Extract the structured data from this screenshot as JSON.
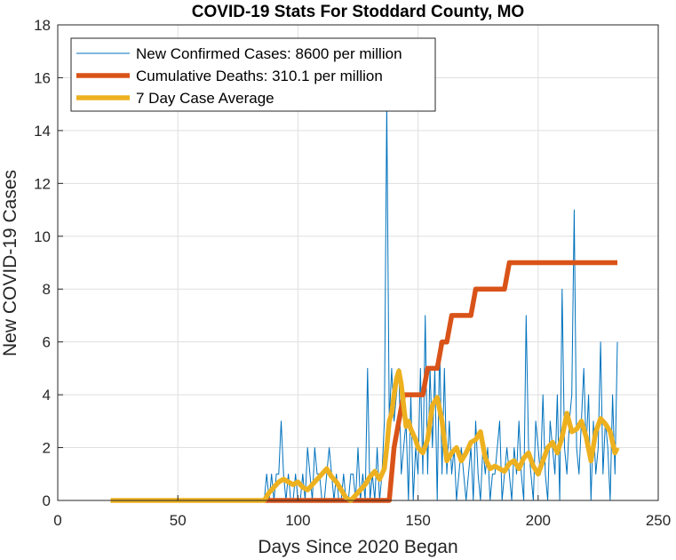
{
  "chart_data": {
    "type": "line",
    "title": "COVID-19 Stats For Stoddard County, MO",
    "xlabel": "Days Since 2020 Began",
    "ylabel": "New COVID-19 Cases",
    "xlim": [
      0,
      250
    ],
    "ylim": [
      0,
      18
    ],
    "xticks": [
      0,
      50,
      100,
      150,
      200,
      250
    ],
    "yticks": [
      0,
      2,
      4,
      6,
      8,
      10,
      12,
      14,
      16,
      18
    ],
    "grid": true,
    "legend_position": "top-left",
    "series": [
      {
        "name": "New Confirmed Cases: 8600 per million",
        "color": "#0072BD",
        "style": "thin",
        "x": [
          22,
          30,
          40,
          50,
          60,
          70,
          80,
          86,
          87,
          88,
          89,
          90,
          91,
          92,
          93,
          94,
          95,
          96,
          97,
          98,
          99,
          100,
          101,
          102,
          103,
          104,
          105,
          106,
          107,
          108,
          109,
          110,
          111,
          112,
          113,
          114,
          115,
          116,
          117,
          118,
          119,
          120,
          121,
          122,
          123,
          124,
          125,
          126,
          127,
          128,
          129,
          130,
          131,
          132,
          133,
          134,
          135,
          136,
          137,
          138,
          139,
          140,
          141,
          142,
          143,
          144,
          145,
          146,
          147,
          148,
          149,
          150,
          151,
          152,
          153,
          154,
          155,
          156,
          157,
          158,
          159,
          160,
          161,
          162,
          163,
          164,
          165,
          166,
          167,
          168,
          169,
          170,
          171,
          172,
          173,
          174,
          175,
          176,
          177,
          178,
          179,
          180,
          181,
          182,
          183,
          184,
          185,
          186,
          187,
          188,
          189,
          190,
          191,
          192,
          193,
          194,
          195,
          196,
          197,
          198,
          199,
          200,
          201,
          202,
          203,
          204,
          205,
          206,
          207,
          208,
          209,
          210,
          211,
          212,
          213,
          214,
          215,
          216,
          217,
          218,
          219,
          220,
          221,
          222,
          223,
          224,
          225,
          226,
          227,
          228,
          229,
          230,
          231,
          232,
          233
        ],
        "values": [
          0,
          0,
          0,
          0,
          0,
          0,
          0,
          0,
          1,
          0,
          1,
          0,
          1,
          1,
          3,
          1,
          0,
          1,
          0,
          0,
          1,
          0,
          0,
          1,
          0,
          2,
          1,
          0,
          2,
          1,
          1,
          0,
          0,
          1,
          2,
          1,
          0,
          1,
          0,
          0,
          1,
          0,
          0,
          1,
          1,
          0,
          2,
          0,
          1,
          0,
          5,
          0,
          1,
          0,
          2,
          0,
          1,
          3,
          15,
          3,
          5,
          3,
          4,
          5,
          1,
          2,
          3,
          0,
          4,
          0,
          2,
          1,
          5,
          1,
          7,
          1,
          5,
          2,
          5,
          0,
          6,
          1,
          5,
          1,
          3,
          1,
          2,
          0,
          1,
          2,
          1,
          0,
          1,
          2,
          0,
          3,
          1,
          0,
          2,
          1,
          2,
          0,
          1,
          1,
          2,
          3,
          0,
          1,
          2,
          1,
          0,
          2,
          1,
          3,
          1,
          0,
          7,
          2,
          1,
          0,
          3,
          2,
          1,
          4,
          1,
          0,
          3,
          2,
          1,
          4,
          0,
          8,
          2,
          1,
          3,
          4,
          11,
          2,
          1,
          3,
          5,
          2,
          4,
          0,
          3,
          1,
          2,
          6,
          1,
          3,
          2,
          0,
          4,
          1,
          6
        ]
      },
      {
        "name": "Cumulative Deaths: 310.1 per million",
        "color": "#D95319",
        "style": "thick",
        "x": [
          86,
          138,
          140,
          142,
          144,
          152,
          154,
          158,
          160,
          162,
          164,
          172,
          174,
          186,
          188,
          233
        ],
        "values": [
          0,
          0,
          2,
          3,
          4,
          4,
          5,
          5,
          6,
          6,
          7,
          7,
          8,
          8,
          9,
          9
        ]
      },
      {
        "name": "7 Day Case Average",
        "color": "#EDB120",
        "style": "thick",
        "x": [
          22,
          40,
          60,
          80,
          86,
          88,
          90,
          92,
          94,
          96,
          98,
          100,
          102,
          104,
          106,
          108,
          110,
          112,
          114,
          116,
          118,
          120,
          122,
          124,
          126,
          128,
          130,
          132,
          134,
          136,
          137,
          138,
          139,
          140,
          141,
          142,
          143,
          144,
          145,
          146,
          147,
          148,
          149,
          150,
          152,
          154,
          156,
          158,
          160,
          162,
          164,
          166,
          168,
          170,
          172,
          174,
          176,
          178,
          180,
          182,
          184,
          186,
          188,
          190,
          192,
          194,
          196,
          198,
          200,
          202,
          204,
          206,
          208,
          210,
          212,
          214,
          216,
          218,
          220,
          222,
          224,
          226,
          228,
          230,
          232,
          233
        ],
        "values": [
          0,
          0,
          0,
          0,
          0,
          0.3,
          0.5,
          0.7,
          0.8,
          0.7,
          0.6,
          0.7,
          0.5,
          0.4,
          0.6,
          0.8,
          1.0,
          1.2,
          0.9,
          0.7,
          0.4,
          0.1,
          0,
          0.2,
          0.4,
          0.6,
          0.9,
          1.1,
          0.8,
          1.2,
          2.0,
          3.0,
          3.3,
          4.0,
          4.6,
          4.9,
          4.4,
          3.6,
          2.8,
          3.0,
          2.7,
          2.5,
          2.3,
          2.0,
          1.8,
          2.3,
          3.6,
          3.9,
          3.0,
          1.5,
          1.8,
          2.0,
          1.5,
          1.8,
          2.2,
          2.3,
          2.6,
          1.6,
          1.2,
          1.3,
          1.2,
          1.1,
          1.4,
          1.5,
          1.2,
          1.6,
          1.8,
          1.3,
          1.0,
          1.5,
          2.0,
          2.2,
          1.8,
          2.4,
          3.3,
          2.6,
          2.7,
          3.0,
          2.4,
          1.5,
          2.6,
          3.1,
          2.9,
          2.6,
          1.8,
          2.0
        ]
      }
    ]
  }
}
